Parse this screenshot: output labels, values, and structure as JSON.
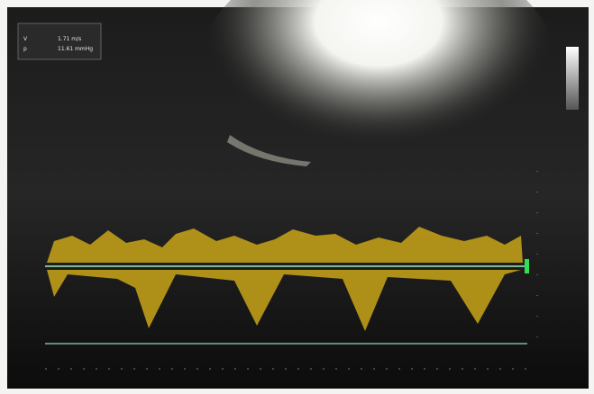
{
  "measurements": [
    {
      "label": "V",
      "value": "1.71 m/s"
    },
    {
      "label": "p",
      "value": "11.61 mmHg"
    }
  ]
}
